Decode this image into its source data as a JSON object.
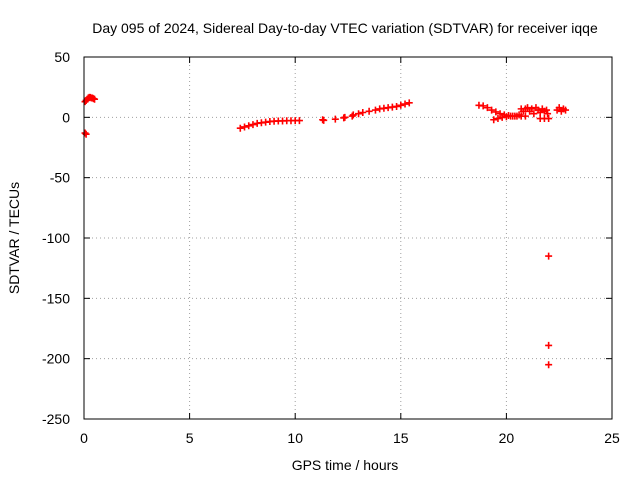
{
  "chart_data": {
    "type": "scatter",
    "title": "Day 095 of 2024, Sidereal Day-to-day VTEC variation (SDTVAR) for receiver iqqe",
    "xlabel": "GPS time / hours",
    "ylabel": "SDTVAR / TECUs",
    "xlim": [
      0,
      25
    ],
    "ylim": [
      -250,
      50
    ],
    "xticks": [
      0,
      5,
      10,
      15,
      20,
      25
    ],
    "yticks": [
      -250,
      -200,
      -150,
      -100,
      -50,
      0,
      50
    ],
    "grid": true,
    "marker_color": "#ff0000",
    "series": [
      {
        "name": "SDTVAR",
        "points": [
          [
            0.05,
            13
          ],
          [
            0.1,
            14
          ],
          [
            0.15,
            15
          ],
          [
            0.2,
            16
          ],
          [
            0.25,
            16.5
          ],
          [
            0.3,
            16.5
          ],
          [
            0.35,
            16
          ],
          [
            0.4,
            16
          ],
          [
            0.45,
            15.5
          ],
          [
            0.5,
            15
          ],
          [
            0.05,
            -13
          ],
          [
            0.1,
            -14
          ],
          [
            7.4,
            -9
          ],
          [
            7.6,
            -8
          ],
          [
            7.8,
            -7
          ],
          [
            8.0,
            -6
          ],
          [
            8.2,
            -5
          ],
          [
            8.4,
            -4.5
          ],
          [
            8.6,
            -4
          ],
          [
            8.8,
            -3.5
          ],
          [
            9.0,
            -3.2
          ],
          [
            9.2,
            -3
          ],
          [
            9.4,
            -3
          ],
          [
            9.6,
            -2.8
          ],
          [
            9.8,
            -2.8
          ],
          [
            10.0,
            -2.7
          ],
          [
            10.2,
            -2.7
          ],
          [
            11.3,
            -2
          ],
          [
            11.35,
            -2.5
          ],
          [
            11.9,
            -1.5
          ],
          [
            12.3,
            -0.5
          ],
          [
            12.35,
            0
          ],
          [
            12.7,
            1
          ],
          [
            12.75,
            2
          ],
          [
            13.0,
            3
          ],
          [
            13.2,
            4
          ],
          [
            13.5,
            5
          ],
          [
            13.8,
            6
          ],
          [
            14.0,
            7
          ],
          [
            14.2,
            7.5
          ],
          [
            14.4,
            8
          ],
          [
            14.6,
            8.5
          ],
          [
            14.8,
            9
          ],
          [
            15.0,
            10
          ],
          [
            15.2,
            11
          ],
          [
            15.4,
            12
          ],
          [
            18.7,
            10
          ],
          [
            18.9,
            9.5
          ],
          [
            19.1,
            8
          ],
          [
            19.3,
            6
          ],
          [
            19.5,
            4.5
          ],
          [
            19.7,
            3
          ],
          [
            19.9,
            2
          ],
          [
            20.1,
            1.5
          ],
          [
            20.3,
            1
          ],
          [
            20.5,
            1
          ],
          [
            20.7,
            1
          ],
          [
            20.9,
            1
          ],
          [
            19.4,
            -2
          ],
          [
            19.6,
            -1
          ],
          [
            19.8,
            0
          ],
          [
            20.0,
            0.5
          ],
          [
            20.2,
            1
          ],
          [
            20.4,
            1
          ],
          [
            20.6,
            2
          ],
          [
            20.7,
            7
          ],
          [
            20.8,
            5
          ],
          [
            20.9,
            7
          ],
          [
            21.0,
            8
          ],
          [
            21.1,
            5
          ],
          [
            21.2,
            7
          ],
          [
            21.3,
            3
          ],
          [
            21.4,
            8
          ],
          [
            21.5,
            6
          ],
          [
            21.6,
            4
          ],
          [
            21.7,
            7
          ],
          [
            21.8,
            5
          ],
          [
            21.9,
            6
          ],
          [
            21.95,
            3
          ],
          [
            21.6,
            -1
          ],
          [
            21.8,
            -1
          ],
          [
            22.0,
            -1
          ],
          [
            22.4,
            6
          ],
          [
            22.5,
            8
          ],
          [
            22.6,
            5
          ],
          [
            22.7,
            7
          ],
          [
            22.8,
            6
          ],
          [
            22.0,
            -115
          ],
          [
            22.0,
            -189
          ],
          [
            22.0,
            -205
          ]
        ]
      }
    ]
  }
}
